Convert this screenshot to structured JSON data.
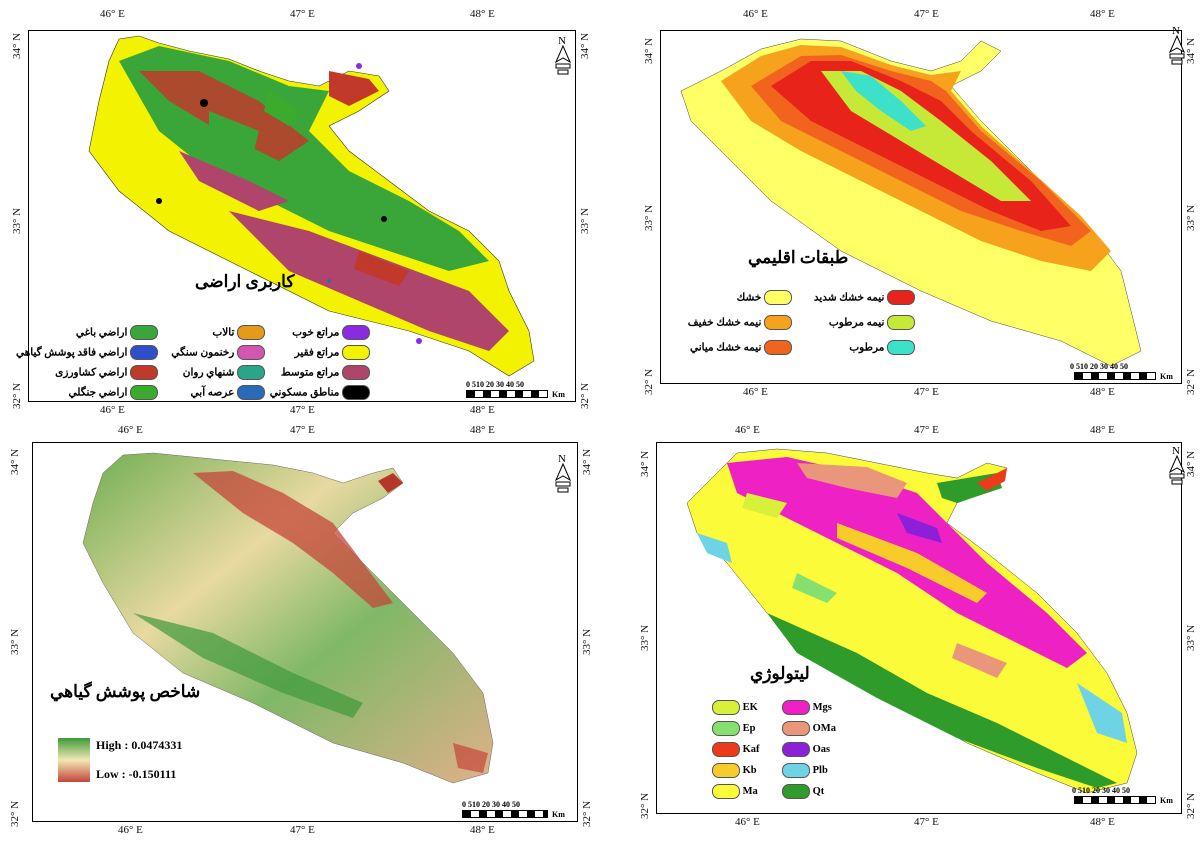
{
  "colors": {
    "orchard": "#3aa63a",
    "low_cover": "#2e4fc9",
    "agri": "#c0392b",
    "forest": "#3bab2e",
    "pond": "#e59a1a",
    "rock": "#d157b1",
    "sand": "#2aa58a",
    "water": "#2a6bb8",
    "good_range": "#8a2be2",
    "poor_range": "#f3f300",
    "med_range": "#b0456b",
    "urban": "#000000"
  },
  "panels": {
    "landuse": {
      "title": "کاربری اراضی",
      "x_ticks": [
        "46° E",
        "47° E",
        "48° E"
      ],
      "y_ticks": [
        "34° N",
        "33° N",
        "32° N"
      ],
      "legend": [
        {
          "label": "اراضي باغي",
          "color": "#3aa63a"
        },
        {
          "label": "اراضي فاقد پوشش گياهي",
          "color": "#2e4fc9"
        },
        {
          "label": "اراضي كشاورزى",
          "color": "#c0392b"
        },
        {
          "label": "اراضي جنگلي",
          "color": "#3bab2e"
        },
        {
          "label": "تالاب",
          "color": "#e59a1a"
        },
        {
          "label": "رخنمون سنگي",
          "color": "#d157b1"
        },
        {
          "label": "شنهاي روان",
          "color": "#2aa58a"
        },
        {
          "label": "عرصه آبي",
          "color": "#2a6bb8"
        },
        {
          "label": "مراتع خوب",
          "color": "#8a2be2"
        },
        {
          "label": "مراتع فقير",
          "color": "#f3f300"
        },
        {
          "label": "مراتع متوسط",
          "color": "#b0456b"
        },
        {
          "label": "مناطق مسكوني",
          "color": "#000000"
        }
      ]
    },
    "climate": {
      "title": "طبقات اقليمي",
      "x_ticks": [
        "46° E",
        "47° E",
        "48° E"
      ],
      "y_ticks": [
        "34° N",
        "33° N",
        "32° N"
      ],
      "legend": [
        {
          "label": "خشك",
          "color": "#ffff66"
        },
        {
          "label": "نيمه خشك خفيف",
          "color": "#f6a21c"
        },
        {
          "label": "نيمه خشك مياني",
          "color": "#f2641e"
        },
        {
          "label": "نيمه خشك شديد",
          "color": "#e8231a"
        },
        {
          "label": "نيمه مرطوب",
          "color": "#c6e836"
        },
        {
          "label": "مرطوب",
          "color": "#3de0c8"
        }
      ]
    },
    "ndvi": {
      "title": "شاخص پوشش گياهي",
      "x_ticks": [
        "46° E",
        "47° E",
        "48° E"
      ],
      "y_ticks": [
        "34° N",
        "33° N",
        "32° N"
      ],
      "high_label": "High : 0.0474331",
      "low_label": "Low : -0.150111"
    },
    "lithology": {
      "title": "ليتولوژي",
      "x_ticks": [
        "46° E",
        "47° E",
        "48° E"
      ],
      "y_ticks": [
        "34° N",
        "33° N",
        "32° N"
      ],
      "legend": [
        {
          "label": "EK",
          "color": "#d8f03a"
        },
        {
          "label": "Ep",
          "color": "#86e070"
        },
        {
          "label": "Kaf",
          "color": "#ec3b1b"
        },
        {
          "label": "Kb",
          "color": "#f7cc2a"
        },
        {
          "label": "Ma",
          "color": "#fbfb3a"
        },
        {
          "label": "Mgs",
          "color": "#ee22c4"
        },
        {
          "label": "OMa",
          "color": "#e9967a"
        },
        {
          "label": "Oas",
          "color": "#8c1fd8"
        },
        {
          "label": "Plb",
          "color": "#6fd3e6"
        },
        {
          "label": "Qt",
          "color": "#2e9b2a"
        }
      ]
    }
  },
  "scale": {
    "ticks": "0 510 20 30 40 50",
    "unit": "Km"
  }
}
